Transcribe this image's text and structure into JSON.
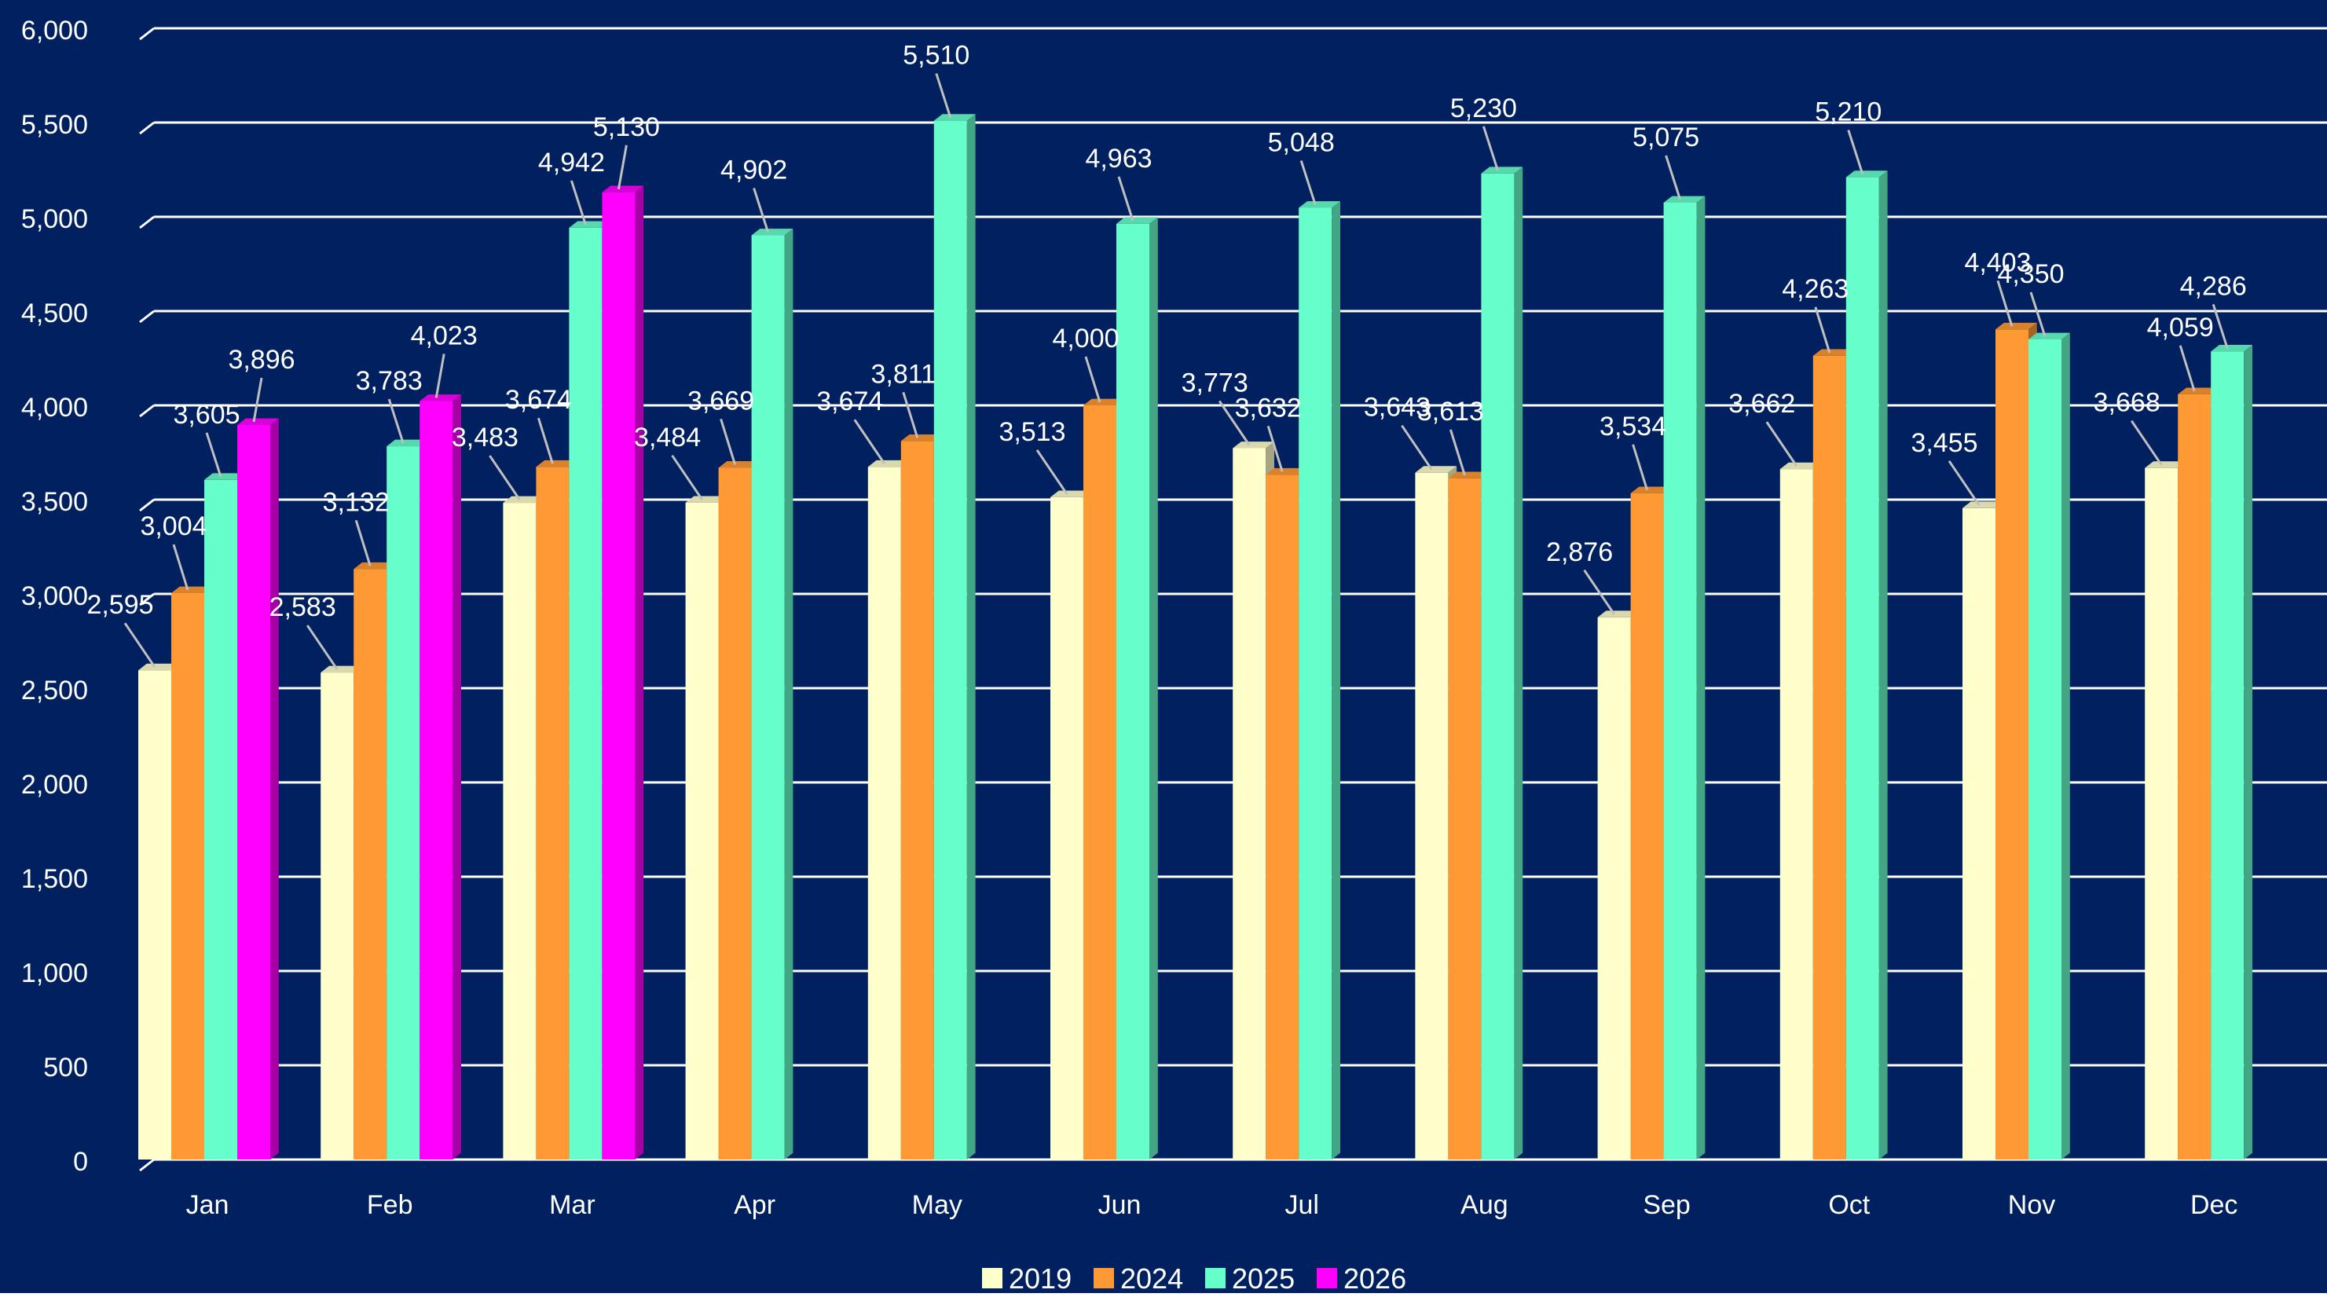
{
  "chart_data": {
    "type": "bar",
    "title": "",
    "xlabel": "",
    "ylabel": "",
    "ylim": [
      0,
      6000
    ],
    "yticks": [
      0,
      500,
      1000,
      1500,
      2000,
      2500,
      3000,
      3500,
      4000,
      4500,
      5000,
      5500,
      6000
    ],
    "ytick_labels": [
      "0",
      "500",
      "1,000",
      "1,500",
      "2,000",
      "2,500",
      "3,000",
      "3,500",
      "4,000",
      "4,500",
      "5,000",
      "5,500",
      "6,000"
    ],
    "grid": true,
    "legend_position": "bottom",
    "categories": [
      "Jan",
      "Feb",
      "Mar",
      "Apr",
      "May",
      "Jun",
      "Jul",
      "Aug",
      "Sep",
      "Oct",
      "Nov",
      "Dec"
    ],
    "series": [
      {
        "name": "2019",
        "color": "#FFFFCC",
        "values": [
          2595,
          2583,
          3483,
          3484,
          3674,
          3513,
          3773,
          3643,
          2876,
          3662,
          3455,
          3668
        ],
        "labels": [
          "2,595",
          "2,583",
          "3,483",
          "3,484",
          "3,674",
          "3,513",
          "3,773",
          "3,643",
          "2,876",
          "3,662",
          "3,455",
          "3,668"
        ]
      },
      {
        "name": "2024",
        "color": "#FF9933",
        "values": [
          3004,
          3132,
          3674,
          3669,
          3811,
          4000,
          3632,
          3613,
          3534,
          4263,
          4403,
          4059
        ],
        "labels": [
          "3,004",
          "3,132",
          "3,674",
          "3,669",
          "3,811",
          "4,000",
          "3,632",
          "3,613",
          "3,534",
          "4,263",
          "4,403",
          "4,059"
        ]
      },
      {
        "name": "2025",
        "color": "#66FFCC",
        "values": [
          3605,
          3783,
          4942,
          4902,
          5510,
          4963,
          5048,
          5230,
          5075,
          5210,
          4350,
          4286
        ],
        "labels": [
          "3,605",
          "3,783",
          "4,942",
          "4,902",
          "5,510",
          "4,963",
          "5,048",
          "5,230",
          "5,075",
          "5,210",
          "4,350",
          "4,286"
        ]
      },
      {
        "name": "2026",
        "color": "#FF00FF",
        "values": [
          3896,
          4023,
          5130,
          null,
          null,
          null,
          null,
          null,
          null,
          null,
          null,
          null
        ],
        "labels": [
          "3,896",
          "4,023",
          "5,130",
          null,
          null,
          null,
          null,
          null,
          null,
          null,
          null,
          null
        ]
      }
    ],
    "background_color": "#002060",
    "text_color": "#FFFFFF",
    "gridline_color": "#FFFFFF"
  }
}
